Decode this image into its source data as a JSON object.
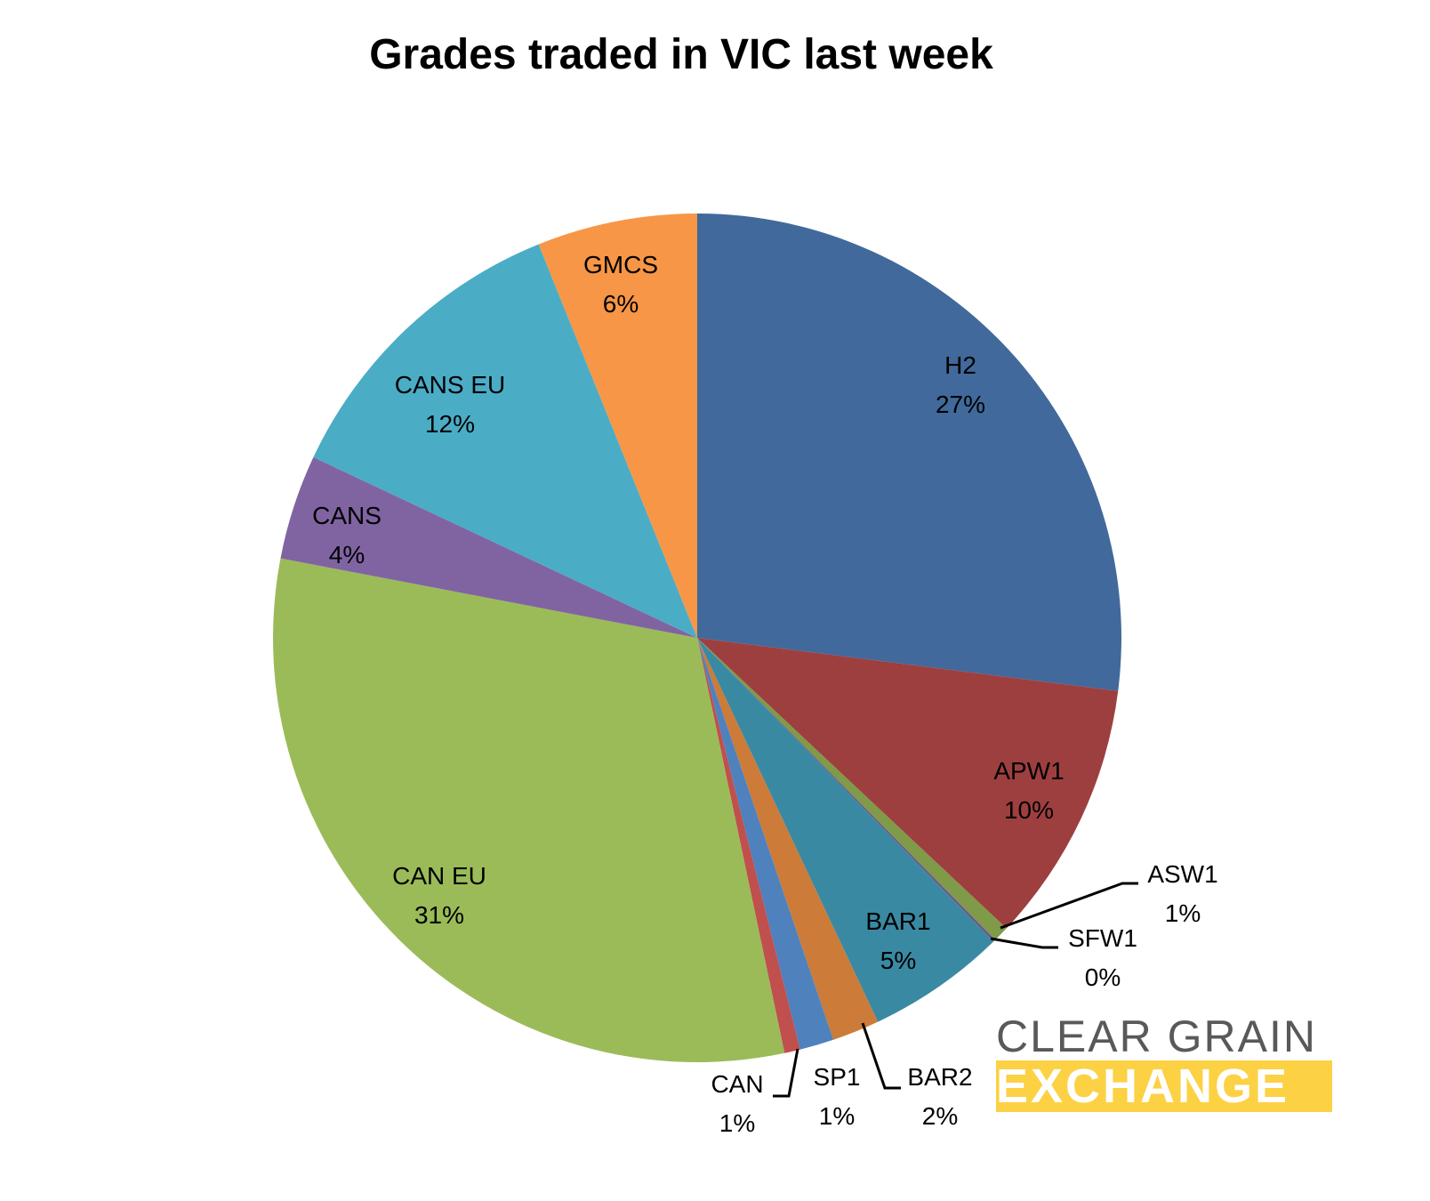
{
  "chart_data": {
    "type": "pie",
    "title": "Grades traded in VIC last week",
    "start_angle": "12 o'clock, clockwise",
    "slices": [
      {
        "label": "H2",
        "value": 27,
        "display": "27%",
        "color": "#41699b"
      },
      {
        "label": "APW1",
        "value": 10,
        "display": "10%",
        "color": "#9e3f3f"
      },
      {
        "label": "ASW1",
        "value": 0.6,
        "display": "1%",
        "color": "#7f9a48"
      },
      {
        "label": "SFW1",
        "value": 0.1,
        "display": "0%",
        "color": "#6b5a8a"
      },
      {
        "label": "BAR1",
        "value": 5.3,
        "display": "5%",
        "color": "#3a89a3"
      },
      {
        "label": "BAR2",
        "value": 1.8,
        "display": "2%",
        "color": "#cc7b38"
      },
      {
        "label": "SP1",
        "value": 1.3,
        "display": "1%",
        "color": "#4f81bd"
      },
      {
        "label": "CAN",
        "value": 0.6,
        "display": "1%",
        "color": "#c0504d"
      },
      {
        "label": "CAN EU",
        "value": 31.3,
        "display": "31%",
        "color": "#9bbb59"
      },
      {
        "label": "CANS",
        "value": 4,
        "display": "4%",
        "color": "#8064a2"
      },
      {
        "label": "CANS EU",
        "value": 11.9,
        "display": "12%",
        "color": "#4bacc6"
      },
      {
        "label": "GMCS",
        "value": 6.1,
        "display": "6%",
        "color": "#f79646"
      }
    ],
    "legend": "none (data labels on slices)"
  },
  "logo": {
    "line1": "CLEAR GRAIN",
    "line2": "EXCHANGE",
    "gray": "#58595b",
    "yellow": "#fcd143"
  }
}
